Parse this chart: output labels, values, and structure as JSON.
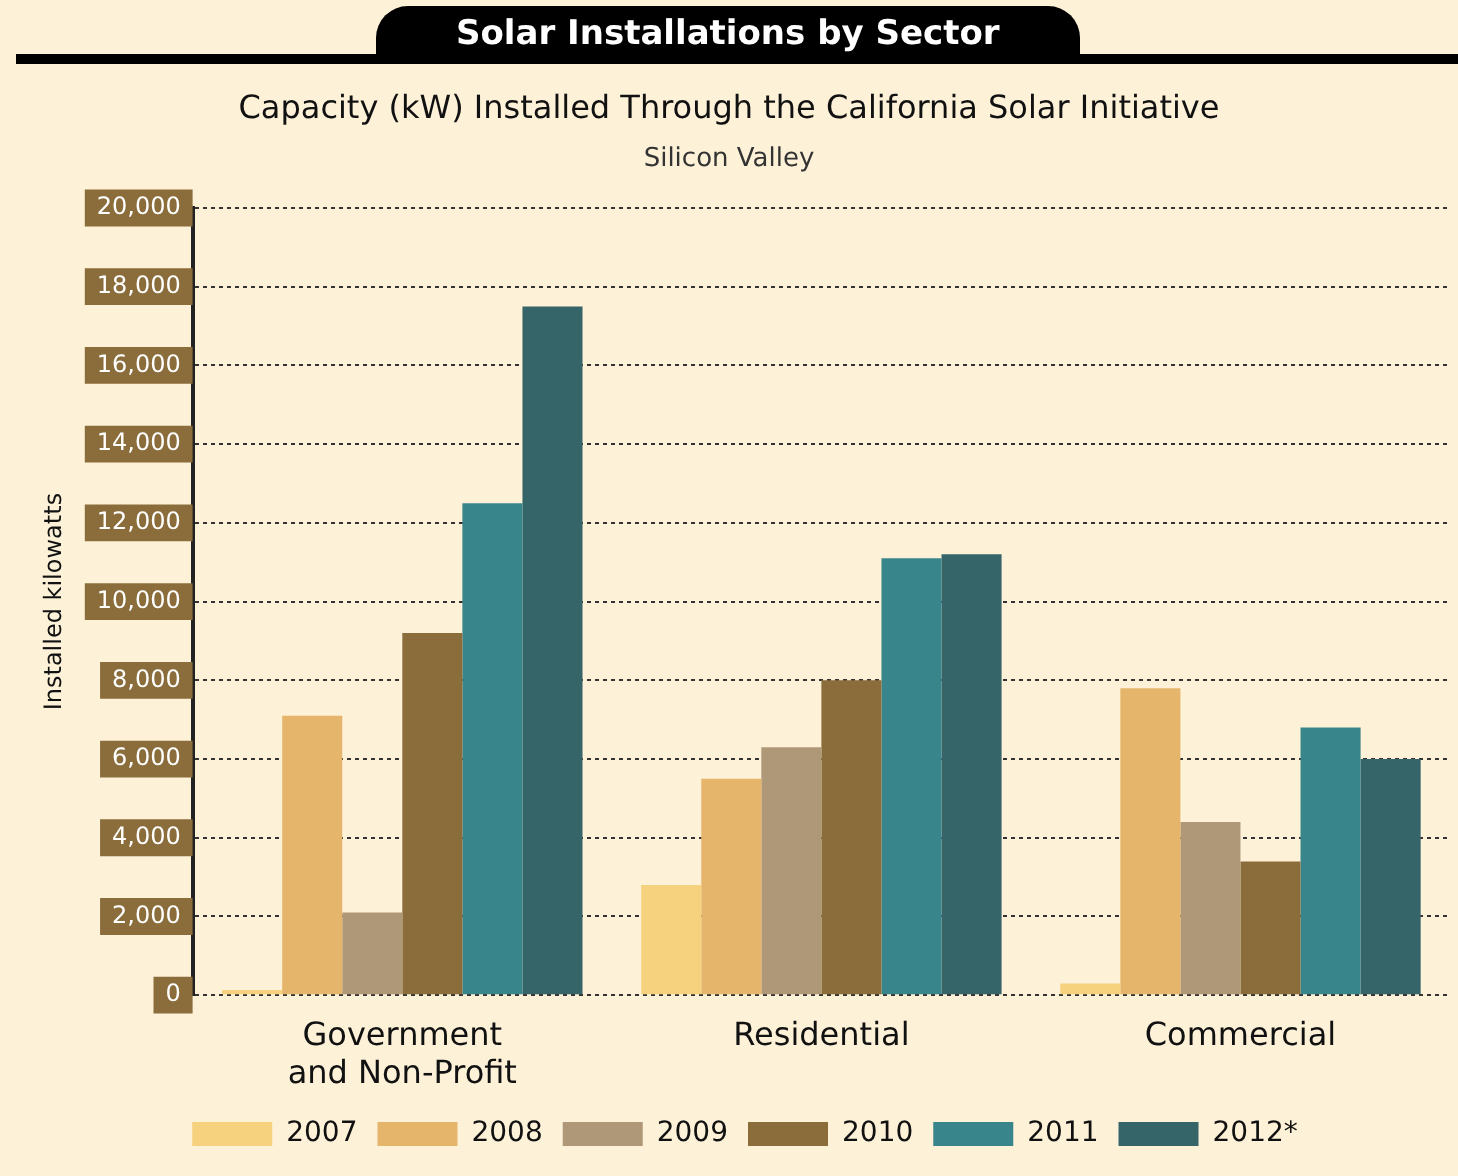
{
  "chart_data": {
    "type": "bar",
    "title": "Solar Installations by Sector",
    "subtitle": "Capacity (kW) Installed Through the California Solar Initiative",
    "annotations": [
      "Silicon Valley"
    ],
    "ylabel": "Installed kilowatts",
    "categories": [
      "Government and Non-Profit",
      "Residential",
      "Commercial"
    ],
    "series": [
      {
        "name": "2007",
        "color": "#f6d27f",
        "values": [
          130,
          2800,
          300
        ]
      },
      {
        "name": "2008",
        "color": "#e5b56c",
        "values": [
          7100,
          5500,
          7800
        ]
      },
      {
        "name": "2009",
        "color": "#af9877",
        "values": [
          2100,
          6300,
          4400
        ]
      },
      {
        "name": "2010",
        "color": "#8a6d3b",
        "values": [
          9200,
          8000,
          3400
        ]
      },
      {
        "name": "2011",
        "color": "#38858b",
        "values": [
          12500,
          11100,
          6800
        ]
      },
      {
        "name": "2012*",
        "color": "#356569",
        "values": [
          17500,
          11200,
          6000
        ]
      }
    ],
    "ylim": [
      0,
      20000
    ],
    "yticks": [
      0,
      {
        "value": 2000,
        "label": "2,000"
      },
      {
        "value": 4000,
        "label": "4,000"
      },
      {
        "value": 6000,
        "label": "6,000"
      },
      {
        "value": 8000,
        "label": "8,000"
      },
      {
        "value": 10000,
        "label": "10,000"
      },
      {
        "value": 12000,
        "label": "12,000"
      },
      {
        "value": 14000,
        "label": "14,000"
      },
      {
        "value": 16000,
        "label": "16,000"
      },
      {
        "value": 18000,
        "label": "18,000"
      },
      {
        "value": 20000,
        "label": "20,000"
      }
    ],
    "grid": "y",
    "legend": "bottom"
  }
}
